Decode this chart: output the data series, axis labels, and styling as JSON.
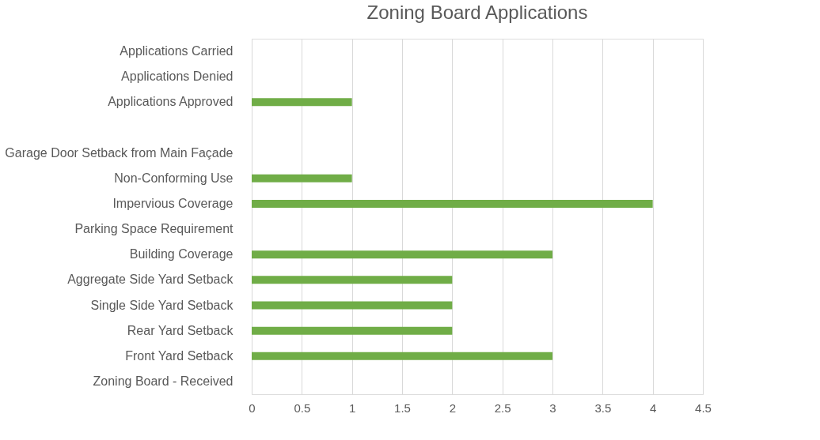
{
  "chart_data": {
    "type": "bar",
    "orientation": "horizontal",
    "title": "Zoning Board Applications",
    "categories": [
      "Applications Carried",
      "Applications Denied",
      "Applications Approved",
      null,
      "Garage Door Setback from Main Façade",
      "Non-Conforming Use",
      "Impervious Coverage",
      "Parking Space Requirement",
      "Building Coverage",
      "Aggregate Side Yard Setback",
      "Single Side Yard Setback",
      "Rear Yard Setback",
      "Front Yard Setback",
      "Zoning Board - Received"
    ],
    "values": [
      null,
      null,
      1,
      null,
      null,
      1,
      4,
      null,
      3,
      2,
      2,
      2,
      3,
      null
    ],
    "color": "#70ad47",
    "xlim": [
      0,
      4.5
    ],
    "xticks": [
      0,
      0.5,
      1,
      1.5,
      2,
      2.5,
      3,
      3.5,
      4,
      4.5
    ],
    "grid": "x"
  }
}
